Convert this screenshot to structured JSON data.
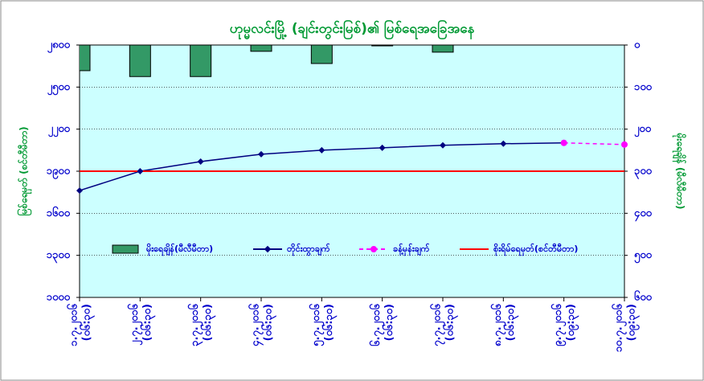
{
  "chart_data": {
    "type": "line",
    "title": "ဟုမ္မလင်းမြို့ (ချင်းတွင်းမြစ်)၏ မြစ်ရေအခြေအနေ",
    "y_label": "မြစ်ရေမှတ် (စင်တီမီတာ)",
    "y2_label": "မိုးရေချိန် (မီလီမီတာ)",
    "categories": [
      "၁.၇.၂၀၁၆",
      "၂.၇.၂၀၁၆",
      "၃.၇.၂၀၁၆",
      "၄.၇.၂၀၁၆",
      "၅.၇.၂၀၁၆",
      "၆.၇.၂၀၁၆",
      "၇.၇.၂၀၁၆",
      "၈.၇.၂၀၁၆",
      "၉.၇.၂၀၁၆",
      "၁၀.၇.၂၀၁၆"
    ],
    "category_times": [
      "(၀၆:၃၀)",
      "(၀၆:၃၀)",
      "(၀၆:၃၀)",
      "(၀၆:၃၀)",
      "(၀၆:၃၀)",
      "(၀၆:၃၀)",
      "(၀၆:၃၀)",
      "(၀၆:၃၀)",
      "(၀၉:၃၀)",
      "(၀၉:၃၀)"
    ],
    "ylim": [
      1000,
      2800
    ],
    "yticks": [
      {
        "value": 1000,
        "label": "၁၀၀၀"
      },
      {
        "value": 1300,
        "label": "၁၃၀၀"
      },
      {
        "value": 1600,
        "label": "၁၆၀၀"
      },
      {
        "value": 1900,
        "label": "၁၉၀၀"
      },
      {
        "value": 2200,
        "label": "၂၂၀၀"
      },
      {
        "value": 2500,
        "label": "၂၅၀၀"
      },
      {
        "value": 2800,
        "label": "၂၈၀၀"
      }
    ],
    "y2lim": [
      600,
      0
    ],
    "y2ticks": [
      {
        "value": 0,
        "label": "၀"
      },
      {
        "value": 100,
        "label": "၁၀၀"
      },
      {
        "value": 200,
        "label": "၂၀၀"
      },
      {
        "value": 300,
        "label": "၃၀၀"
      },
      {
        "value": 400,
        "label": "၄၀၀"
      },
      {
        "value": 500,
        "label": "၅၀၀"
      },
      {
        "value": 600,
        "label": "၆၀၀"
      }
    ],
    "grid": true,
    "series": [
      {
        "name": "မိုးရေချိန်(မီလီမီတာ)",
        "type": "bar",
        "axis": "y2",
        "color": "#339966",
        "values": [
          61,
          75,
          75,
          15,
          44,
          2,
          17,
          null,
          null,
          null
        ]
      },
      {
        "name": "တိုင်းထွာချက်",
        "type": "line",
        "color": "#000080",
        "values": [
          1762,
          1900,
          1969,
          2021,
          2050,
          2067,
          2085,
          2096,
          2102,
          null
        ]
      },
      {
        "name": "ခန့်မှန်းချက်",
        "type": "line",
        "dashed": true,
        "color": "#ff00ff",
        "values": [
          null,
          null,
          null,
          null,
          null,
          null,
          null,
          null,
          2102,
          2090
        ]
      },
      {
        "name": "စိုးရိမ်ရေမှတ်(စင်တီမီတာ)",
        "type": "hline",
        "color": "#ff0000",
        "value": 1900
      }
    ]
  }
}
